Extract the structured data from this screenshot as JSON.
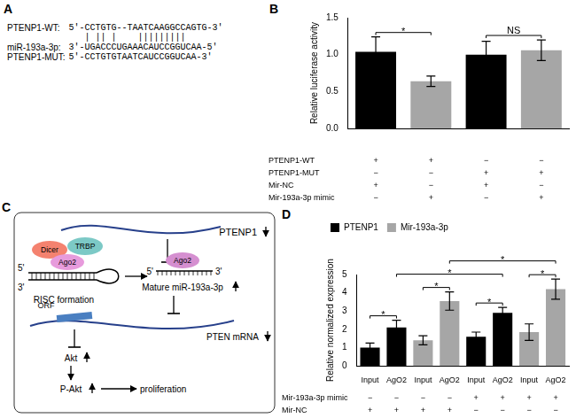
{
  "sequence_panel": {
    "panel_label": "A",
    "wt": {
      "label": "PTENP1-WT:",
      "sequence": "5'-CCTGTG--TAATCAAGGCCAGTG-3'"
    },
    "pairing": "   | || |    |||||||||",
    "mirna": {
      "label": "miR-193a-3p:",
      "sequence": "3'-UGACCCUGAAACAUCCGGUCAA-5'"
    },
    "mut": {
      "label": "PTENP1-MUT:",
      "sequence": "5'-CCTGTGTAATCAUCCGGUCAA-3'"
    }
  },
  "diagram_panel": {
    "panel_label": "C",
    "labels": {
      "ptenp1": "PTENP1",
      "dicer": "Dicer",
      "trbp": "TRBP",
      "ago2_complex": "Ago2",
      "complex_5": "5'",
      "complex_3": "3'",
      "risc": "RISC formation",
      "ago2_mature": "Ago2",
      "mature_5": "5'",
      "mature_3": "3'",
      "mature": "Mature miR-193a-3p",
      "orf": "ORF",
      "pten": "PTEN mRNA",
      "akt": "Akt",
      "pakt": "P-Akt",
      "proliferation": "proliferation"
    }
  },
  "chart_data": [
    {
      "panel_label": "B",
      "type": "bar",
      "y_label": "Relative luciferase activity",
      "categories": [
        null,
        null,
        null,
        null
      ],
      "values": [
        1.04,
        0.64,
        1.0,
        1.06
      ],
      "errors": [
        0.2,
        0.07,
        0.18,
        0.14
      ],
      "colors": [
        "#000000",
        "#a6a6a6",
        "#000000",
        "#a6a6a6"
      ],
      "ylim": [
        0,
        1.5
      ],
      "yticks": [
        {
          "value": 0,
          "label": "0.0"
        },
        0.5,
        {
          "value": 1,
          "label": "1.0"
        },
        1.5
      ],
      "grid": false,
      "annotations": [
        {
          "text": "*",
          "between": [
            0,
            1
          ]
        },
        {
          "text": "NS",
          "between": [
            2,
            3
          ]
        }
      ],
      "conditions": [
        {
          "label": "PTENP1-WT",
          "marks": [
            "+",
            "+",
            "−",
            "−"
          ]
        },
        {
          "label": "PTENP1-MUT",
          "marks": [
            "−",
            "−",
            "+",
            "+"
          ]
        },
        {
          "label": "Mir-NC",
          "marks": [
            "+",
            "−",
            "+",
            "−"
          ]
        },
        {
          "label": "Mir-193a-3p mimic",
          "marks": [
            "−",
            "+",
            "−",
            "+"
          ]
        }
      ]
    },
    {
      "panel_label": "D",
      "type": "bar",
      "y_label": "Relative normalized expression",
      "categories": [
        "Input",
        "AgO2",
        "Input",
        "AgO2",
        "Input",
        "AgO2",
        "Input",
        "AgO2"
      ],
      "series": [
        {
          "name": "PTENP1",
          "color": "#000000",
          "values": [
            1.0,
            2.1,
            null,
            null,
            1.6,
            2.9,
            null,
            null
          ],
          "errors": [
            0.25,
            0.4,
            null,
            null,
            0.25,
            0.3,
            null,
            null
          ]
        },
        {
          "name": "Mir-193a-3p",
          "color": "#a6a6a6",
          "values": [
            null,
            null,
            1.4,
            3.55,
            null,
            null,
            1.85,
            4.2
          ],
          "errors": [
            null,
            null,
            0.25,
            0.5,
            null,
            null,
            0.45,
            0.55
          ]
        }
      ],
      "ylim": [
        0,
        5
      ],
      "yticks": [
        0,
        1,
        2,
        3,
        4,
        5
      ],
      "grid": false,
      "legend": "top-left",
      "annotations": [
        {
          "text": "*",
          "between": [
            0,
            1
          ]
        },
        {
          "text": "*",
          "between": [
            2,
            3
          ]
        },
        {
          "text": "*",
          "between": [
            4,
            5
          ]
        },
        {
          "text": "*",
          "between": [
            6,
            7
          ]
        },
        {
          "text": "*",
          "between": [
            1,
            5
          ]
        },
        {
          "text": "*",
          "between": [
            3,
            7
          ]
        }
      ],
      "conditions": [
        {
          "label": "Mir-193a-3p mimic",
          "marks": [
            "−",
            "−",
            "−",
            "−",
            "+",
            "+",
            "+",
            "+"
          ]
        },
        {
          "label": "Mir-NC",
          "marks": [
            "+",
            "+",
            "+",
            "+",
            "−",
            "−",
            "−",
            "−"
          ]
        }
      ]
    }
  ]
}
